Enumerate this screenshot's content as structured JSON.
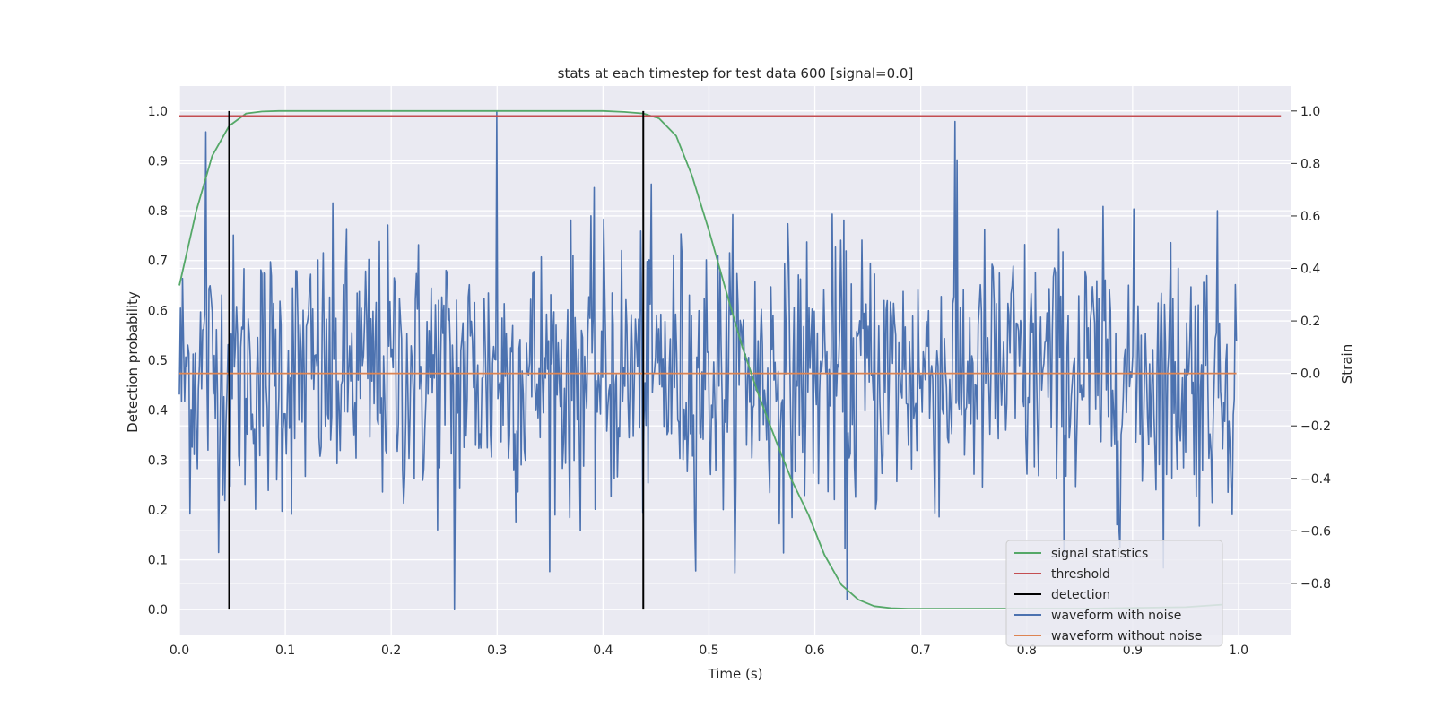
{
  "chart_data": {
    "type": "line",
    "title": "stats at each timestep for test data 600 [signal=0.0]",
    "xlabel": "Time (s)",
    "ylabel": "Detection probability",
    "y2label": "Strain",
    "xlim": [
      0.0,
      1.05
    ],
    "ylim": [
      -0.05,
      1.05
    ],
    "y2lim": [
      -0.995,
      1.095
    ],
    "grid": true,
    "legend_position": "lower-right",
    "x_ticks": [
      "0.0",
      "0.1",
      "0.2",
      "0.3",
      "0.4",
      "0.5",
      "0.6",
      "0.7",
      "0.8",
      "0.9",
      "1.0"
    ],
    "y_ticks": [
      "0.0",
      "0.1",
      "0.2",
      "0.3",
      "0.4",
      "0.5",
      "0.6",
      "0.7",
      "0.8",
      "0.9",
      "1.0"
    ],
    "y2_ticks": [
      "−0.8",
      "−0.6",
      "−0.4",
      "−0.2",
      "0.0",
      "0.2",
      "0.4",
      "0.6",
      "0.8",
      "1.0"
    ],
    "series": [
      {
        "name": "signal statistics",
        "axis": "left",
        "color": "#55a868",
        "x": [
          0.0,
          0.016,
          0.031,
          0.047,
          0.063,
          0.078,
          0.094,
          0.109,
          0.125,
          0.2,
          0.3,
          0.4,
          0.42,
          0.438,
          0.453,
          0.469,
          0.484,
          0.5,
          0.516,
          0.531,
          0.547,
          0.563,
          0.578,
          0.594,
          0.609,
          0.625,
          0.641,
          0.656,
          0.672,
          0.688,
          0.75,
          0.85,
          0.95,
          0.984
        ],
        "y": [
          0.65,
          0.8,
          0.91,
          0.97,
          0.995,
          0.999,
          1.0,
          1.0,
          1.0,
          1.0,
          1.0,
          1.0,
          0.998,
          0.995,
          0.985,
          0.95,
          0.87,
          0.76,
          0.64,
          0.53,
          0.43,
          0.34,
          0.26,
          0.19,
          0.11,
          0.05,
          0.02,
          0.007,
          0.003,
          0.002,
          0.002,
          0.002,
          0.005,
          0.01
        ]
      },
      {
        "name": "threshold",
        "axis": "left",
        "color": "#c44e52",
        "x": [
          0.0,
          1.04
        ],
        "y": [
          0.99,
          0.99
        ]
      },
      {
        "name": "detection",
        "axis": "left",
        "color": "#000000",
        "vlines": [
          0.047,
          0.438
        ],
        "ymin": 0.0,
        "ymax": 1.0
      },
      {
        "name": "waveform with noise",
        "axis": "right",
        "color": "#4c72b0",
        "x_start": 0.0,
        "x_end": 0.998,
        "samples": 1000,
        "amplitude_std": 0.26,
        "peaks": [
          {
            "x": 0.025,
            "y": 0.92
          },
          {
            "x": 0.3,
            "y": 1.0
          },
          {
            "x": 0.732,
            "y": 0.96
          },
          {
            "x": 0.26,
            "y": -0.9
          },
          {
            "x": 0.63,
            "y": -0.86
          }
        ]
      },
      {
        "name": "waveform without noise",
        "axis": "right",
        "color": "#dd8452",
        "x": [
          0.0,
          0.998
        ],
        "y": [
          0.0,
          0.0
        ]
      }
    ]
  }
}
